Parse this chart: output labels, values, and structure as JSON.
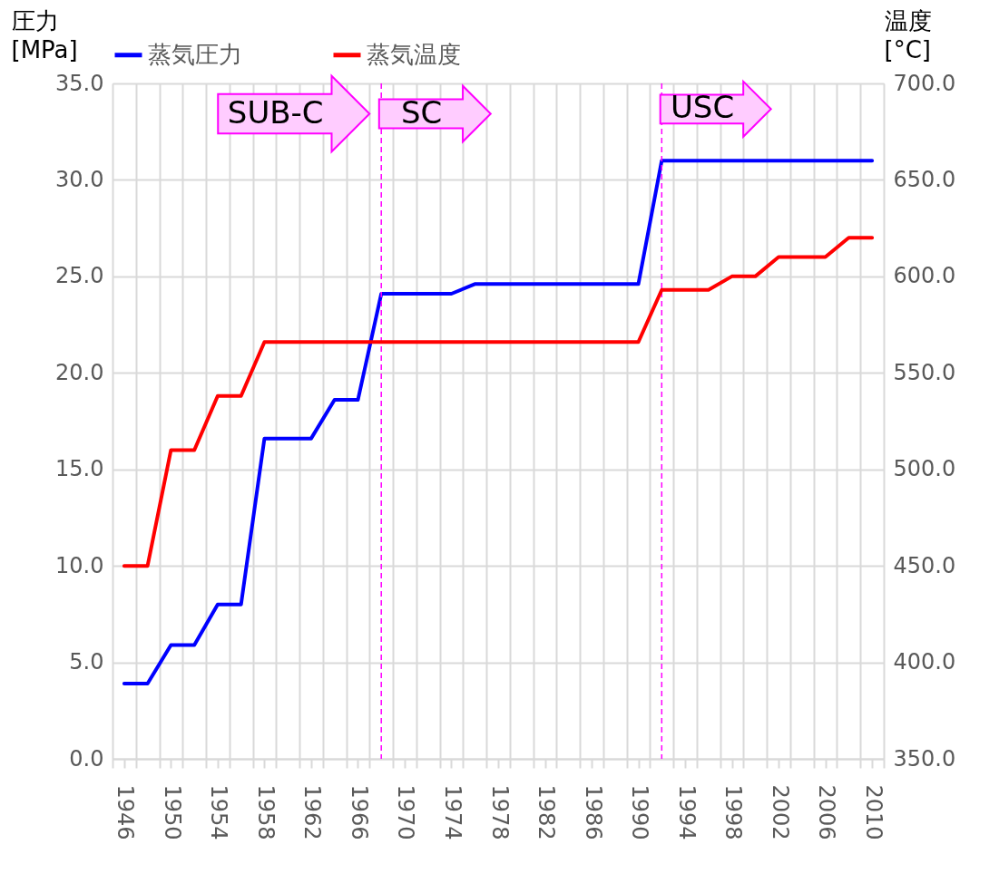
{
  "chart_data": {
    "type": "line",
    "xlim": [
      1945,
      2011
    ],
    "xticks": [
      {
        "value": 1945,
        "label": null
      },
      1946,
      {
        "value": 1947,
        "label": null
      },
      {
        "value": 1949,
        "label": null
      },
      1950,
      {
        "value": 1951,
        "label": null
      },
      {
        "value": 1953,
        "label": null
      },
      1954,
      {
        "value": 1955,
        "label": null
      },
      {
        "value": 1957,
        "label": null
      },
      1958,
      {
        "value": 1959,
        "label": null
      },
      {
        "value": 1961,
        "label": null
      },
      1962,
      {
        "value": 1963,
        "label": null
      },
      {
        "value": 1965,
        "label": null
      },
      1966,
      {
        "value": 1967,
        "label": null
      },
      {
        "value": 1969,
        "label": null
      },
      1970,
      {
        "value": 1971,
        "label": null
      },
      {
        "value": 1973,
        "label": null
      },
      1974,
      {
        "value": 1975,
        "label": null
      },
      {
        "value": 1977,
        "label": null
      },
      1978,
      {
        "value": 1979,
        "label": null
      },
      {
        "value": 1981,
        "label": null
      },
      1982,
      {
        "value": 1983,
        "label": null
      },
      {
        "value": 1985,
        "label": null
      },
      1986,
      {
        "value": 1987,
        "label": null
      },
      {
        "value": 1989,
        "label": null
      },
      1990,
      {
        "value": 1991,
        "label": null
      },
      {
        "value": 1993,
        "label": null
      },
      1994,
      {
        "value": 1995,
        "label": null
      },
      {
        "value": 1997,
        "label": null
      },
      1998,
      {
        "value": 1999,
        "label": null
      },
      {
        "value": 2001,
        "label": null
      },
      2002,
      {
        "value": 2003,
        "label": null
      },
      {
        "value": 2005,
        "label": null
      },
      2006,
      {
        "value": 2007,
        "label": null
      },
      {
        "value": 2009,
        "label": null
      },
      2010,
      {
        "value": 2011,
        "label": null
      }
    ],
    "ylim": [
      0,
      35
    ],
    "yticks": [
      {
        "value": 0,
        "label": "0.0"
      },
      {
        "value": 5,
        "label": "5.0"
      },
      {
        "value": 10,
        "label": "10.0"
      },
      {
        "value": 15,
        "label": "15.0"
      },
      {
        "value": 20,
        "label": "20.0"
      },
      {
        "value": 25,
        "label": "25.0"
      },
      {
        "value": 30,
        "label": "30.0"
      },
      {
        "value": 35,
        "label": "35.0"
      }
    ],
    "y2lim": [
      350,
      700
    ],
    "y2ticks": [
      {
        "value": 350,
        "label": "350.0"
      },
      {
        "value": 400,
        "label": "400.0"
      },
      {
        "value": 450,
        "label": "450.0"
      },
      {
        "value": 500,
        "label": "500.0"
      },
      {
        "value": 550,
        "label": "550.0"
      },
      {
        "value": 600,
        "label": "600.0"
      },
      {
        "value": 650,
        "label": "650.0"
      },
      {
        "value": 700,
        "label": "700.0"
      }
    ],
    "ylabel": "圧力\n[MPa]",
    "y2label": "温度\n[°C]",
    "grid": true,
    "legend": "top",
    "marker": "none",
    "line_style": "solid",
    "series": [
      {
        "name": "蒸気圧力",
        "color": "#0000ff",
        "x": [
          1946,
          1948,
          1950,
          1952,
          1954,
          1956,
          1958,
          1962,
          1964,
          1966,
          1968,
          1974,
          1976,
          1990,
          1992,
          2010
        ],
        "values": [
          3.9,
          3.9,
          5.9,
          5.9,
          8.0,
          8.0,
          16.6,
          16.6,
          18.6,
          18.6,
          24.1,
          24.1,
          24.6,
          24.6,
          31.0,
          31.0
        ]
      },
      {
        "name": "蒸気温度",
        "color": "#ff0000",
        "axis": "y2",
        "x": [
          1946,
          1948,
          1950,
          1952,
          1954,
          1956,
          1958,
          1990,
          1992,
          1996,
          1998,
          2000,
          2002,
          2006,
          2008,
          2010
        ],
        "values": [
          450,
          450,
          510,
          510,
          538,
          538,
          566,
          566,
          593,
          593,
          600,
          600,
          610,
          610,
          620,
          620
        ]
      }
    ],
    "ref_lines": [
      {
        "axis": "x",
        "value": 1968,
        "color": "#ff00ff",
        "line_style": "dashed"
      },
      {
        "axis": "x",
        "value": 1992,
        "color": "#ff00ff",
        "line_style": "dashed"
      }
    ],
    "annotations": [
      "SUB-C",
      "SC",
      "USC"
    ]
  }
}
